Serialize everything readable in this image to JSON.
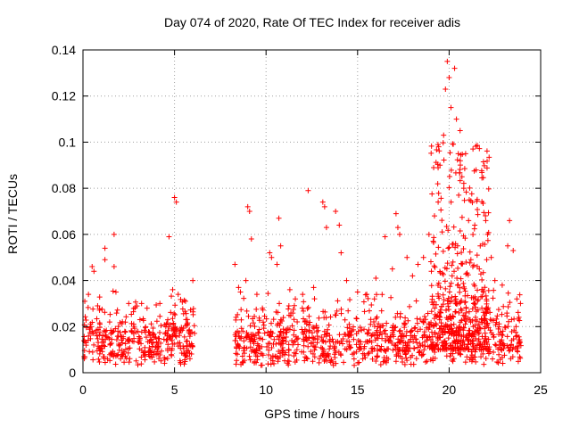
{
  "chart_data": {
    "type": "scatter",
    "title": "Day 074 of 2020, Rate Of TEC Index for receiver adis",
    "xlabel": "GPS time / hours",
    "ylabel": "ROTI / TECUs",
    "xlim": [
      0,
      25
    ],
    "ylim": [
      0,
      0.14
    ],
    "xticks": [
      0,
      5,
      10,
      15,
      20,
      25
    ],
    "yticks": [
      0,
      0.02,
      0.04,
      0.06,
      0.08,
      0.1,
      0.12,
      0.14
    ],
    "xtick_labels": [
      "0",
      "5",
      "10",
      "15",
      "20",
      "25"
    ],
    "ytick_labels": [
      "0",
      "0.02",
      "0.04",
      "0.06",
      "0.08",
      "0.1",
      "0.12",
      "0.14"
    ],
    "grid": true,
    "marker": "+",
    "series_color": "#ff0000",
    "data_gap_hours": [
      6.1,
      8.3
    ],
    "points": [
      [
        0.1,
        0.031
      ],
      [
        0.3,
        0.034
      ],
      [
        0.5,
        0.046
      ],
      [
        0.6,
        0.044
      ],
      [
        0.8,
        0.029
      ],
      [
        1.2,
        0.054
      ],
      [
        1.2,
        0.049
      ],
      [
        1.7,
        0.06
      ],
      [
        1.7,
        0.046
      ],
      [
        1.8,
        0.035
      ],
      [
        2.5,
        0.03
      ],
      [
        3.2,
        0.03
      ],
      [
        3.5,
        0.028
      ],
      [
        4.2,
        0.03
      ],
      [
        4.7,
        0.059
      ],
      [
        4.9,
        0.036
      ],
      [
        5.0,
        0.076
      ],
      [
        5.1,
        0.074
      ],
      [
        5.2,
        0.034
      ],
      [
        5.6,
        0.031
      ],
      [
        6.0,
        0.04
      ],
      [
        8.3,
        0.047
      ],
      [
        8.5,
        0.037
      ],
      [
        8.6,
        0.035
      ],
      [
        8.9,
        0.04
      ],
      [
        9.0,
        0.072
      ],
      [
        9.1,
        0.07
      ],
      [
        9.2,
        0.058
      ],
      [
        9.5,
        0.034
      ],
      [
        9.8,
        0.028
      ],
      [
        10.2,
        0.052
      ],
      [
        10.3,
        0.05
      ],
      [
        10.6,
        0.047
      ],
      [
        10.7,
        0.067
      ],
      [
        10.8,
        0.055
      ],
      [
        11.3,
        0.036
      ],
      [
        11.6,
        0.032
      ],
      [
        12.0,
        0.034
      ],
      [
        12.3,
        0.079
      ],
      [
        12.6,
        0.037
      ],
      [
        13.1,
        0.074
      ],
      [
        13.2,
        0.072
      ],
      [
        13.3,
        0.063
      ],
      [
        13.8,
        0.07
      ],
      [
        14.0,
        0.064
      ],
      [
        14.1,
        0.052
      ],
      [
        14.4,
        0.04
      ],
      [
        15.0,
        0.035
      ],
      [
        15.5,
        0.034
      ],
      [
        16.0,
        0.041
      ],
      [
        16.5,
        0.059
      ],
      [
        16.9,
        0.045
      ],
      [
        17.1,
        0.069
      ],
      [
        17.2,
        0.063
      ],
      [
        17.3,
        0.06
      ],
      [
        17.7,
        0.05
      ],
      [
        18.0,
        0.042
      ],
      [
        18.3,
        0.047
      ],
      [
        18.6,
        0.05
      ],
      [
        18.9,
        0.06
      ],
      [
        19.2,
        0.068
      ],
      [
        19.4,
        0.074
      ],
      [
        19.5,
        0.09
      ],
      [
        19.7,
        0.103
      ],
      [
        19.8,
        0.123
      ],
      [
        19.9,
        0.135
      ],
      [
        20.0,
        0.128
      ],
      [
        20.1,
        0.115
      ],
      [
        20.3,
        0.132
      ],
      [
        20.4,
        0.11
      ],
      [
        20.5,
        0.095
      ],
      [
        20.6,
        0.105
      ],
      [
        20.7,
        0.085
      ],
      [
        20.8,
        0.08
      ],
      [
        20.9,
        0.095
      ],
      [
        21.1,
        0.075
      ],
      [
        21.4,
        0.064
      ],
      [
        21.7,
        0.055
      ],
      [
        22.0,
        0.066
      ],
      [
        22.1,
        0.06
      ],
      [
        22.3,
        0.05
      ],
      [
        22.5,
        0.04
      ],
      [
        22.9,
        0.038
      ],
      [
        23.2,
        0.055
      ],
      [
        23.3,
        0.066
      ],
      [
        23.5,
        0.053
      ],
      [
        23.7,
        0.032
      ],
      [
        23.9,
        0.03
      ]
    ]
  }
}
